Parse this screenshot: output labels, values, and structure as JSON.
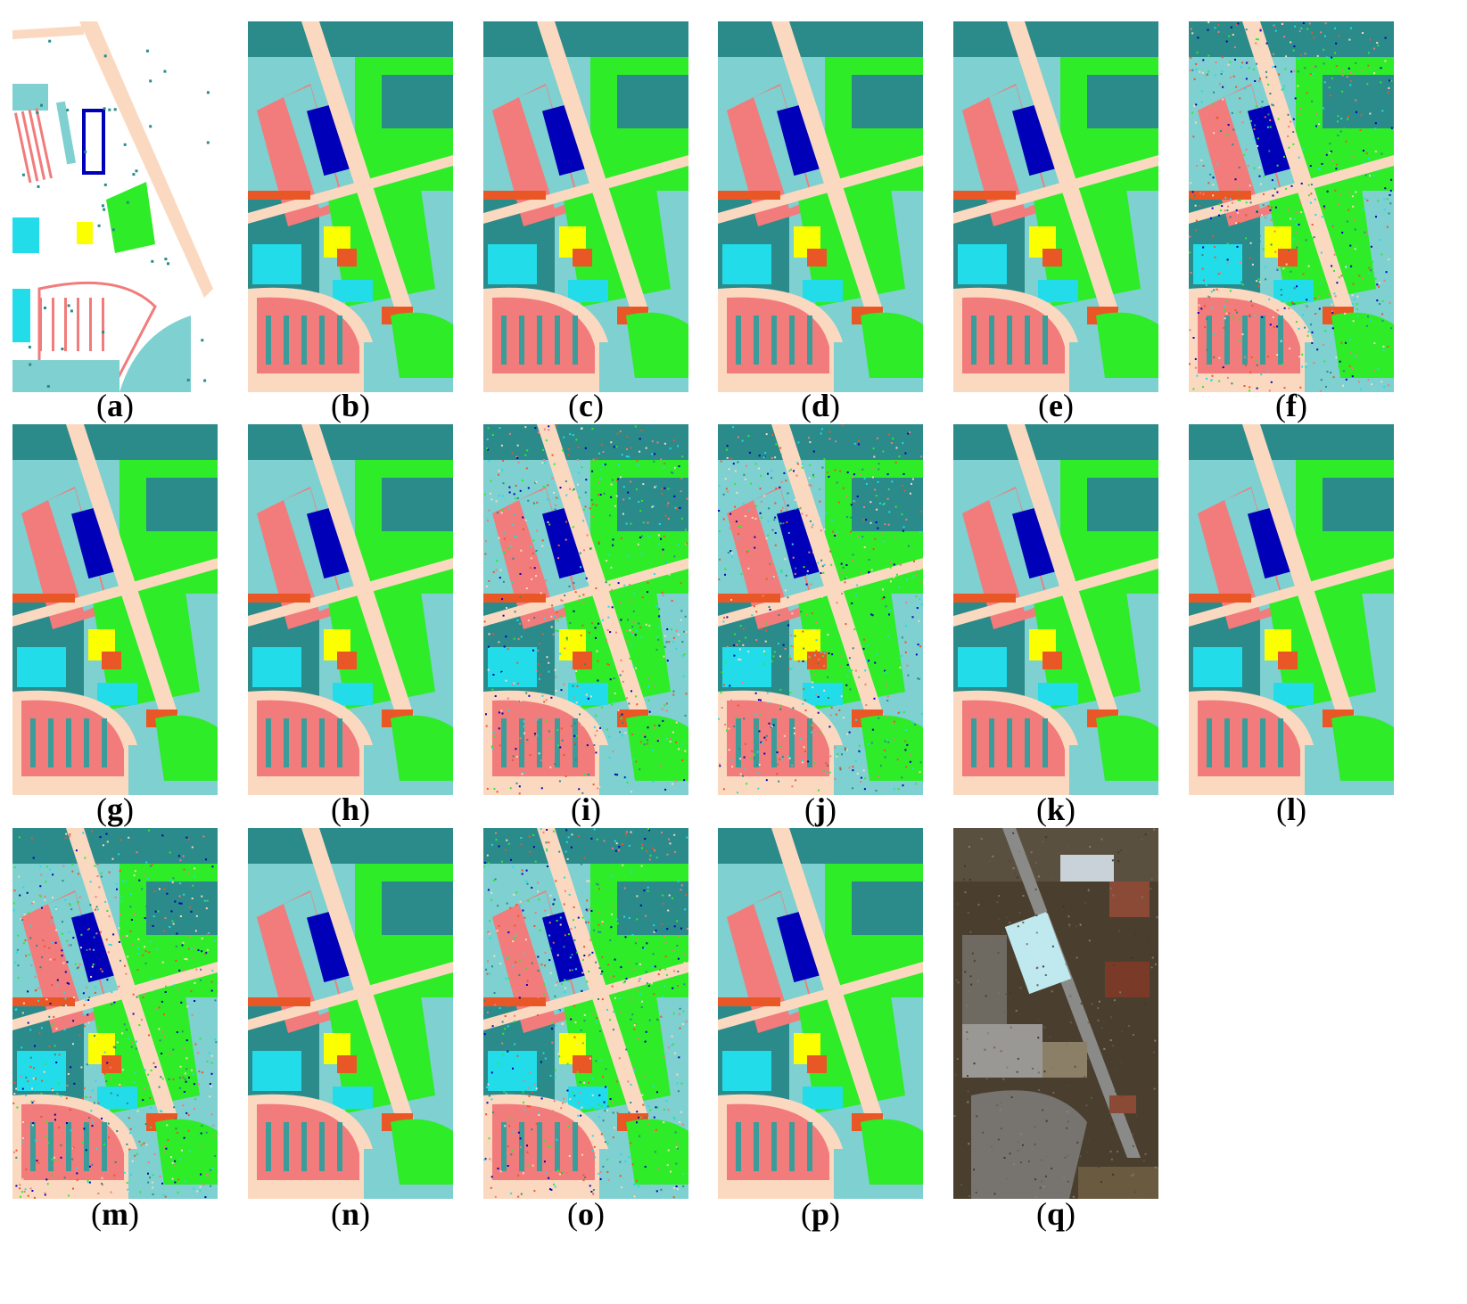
{
  "palette": {
    "asphalt": "#fbd9c0",
    "meadows": "#2eec27",
    "gravel": "#00b4b9",
    "trees": "#3a9d9a",
    "painted_metal": "#fcff00",
    "bare_soil": "#f27b7b",
    "bitumen": "#ea5726",
    "bricks": "#0000b8",
    "shadows": "#6ccccc",
    "cyan": "#22dcea",
    "dark_teal": "#2b8a8a",
    "light_teal": "#7fd0d0"
  },
  "panels": [
    {
      "id": "a",
      "label": "a",
      "style": "groundtruth"
    },
    {
      "id": "b",
      "label": "b",
      "style": "map"
    },
    {
      "id": "c",
      "label": "c",
      "style": "map"
    },
    {
      "id": "d",
      "label": "d",
      "style": "map"
    },
    {
      "id": "e",
      "label": "e",
      "style": "map"
    },
    {
      "id": "f",
      "label": "f",
      "style": "noisy"
    },
    {
      "id": "g",
      "label": "g",
      "style": "map"
    },
    {
      "id": "h",
      "label": "h",
      "style": "map"
    },
    {
      "id": "i",
      "label": "i",
      "style": "noisy"
    },
    {
      "id": "j",
      "label": "j",
      "style": "noisy"
    },
    {
      "id": "k",
      "label": "k",
      "style": "map"
    },
    {
      "id": "l",
      "label": "l",
      "style": "map"
    },
    {
      "id": "m",
      "label": "m",
      "style": "noisy"
    },
    {
      "id": "n",
      "label": "n",
      "style": "map"
    },
    {
      "id": "o",
      "label": "o",
      "style": "noisy"
    },
    {
      "id": "p",
      "label": "p",
      "style": "map"
    },
    {
      "id": "q",
      "label": "q",
      "style": "photo"
    }
  ]
}
